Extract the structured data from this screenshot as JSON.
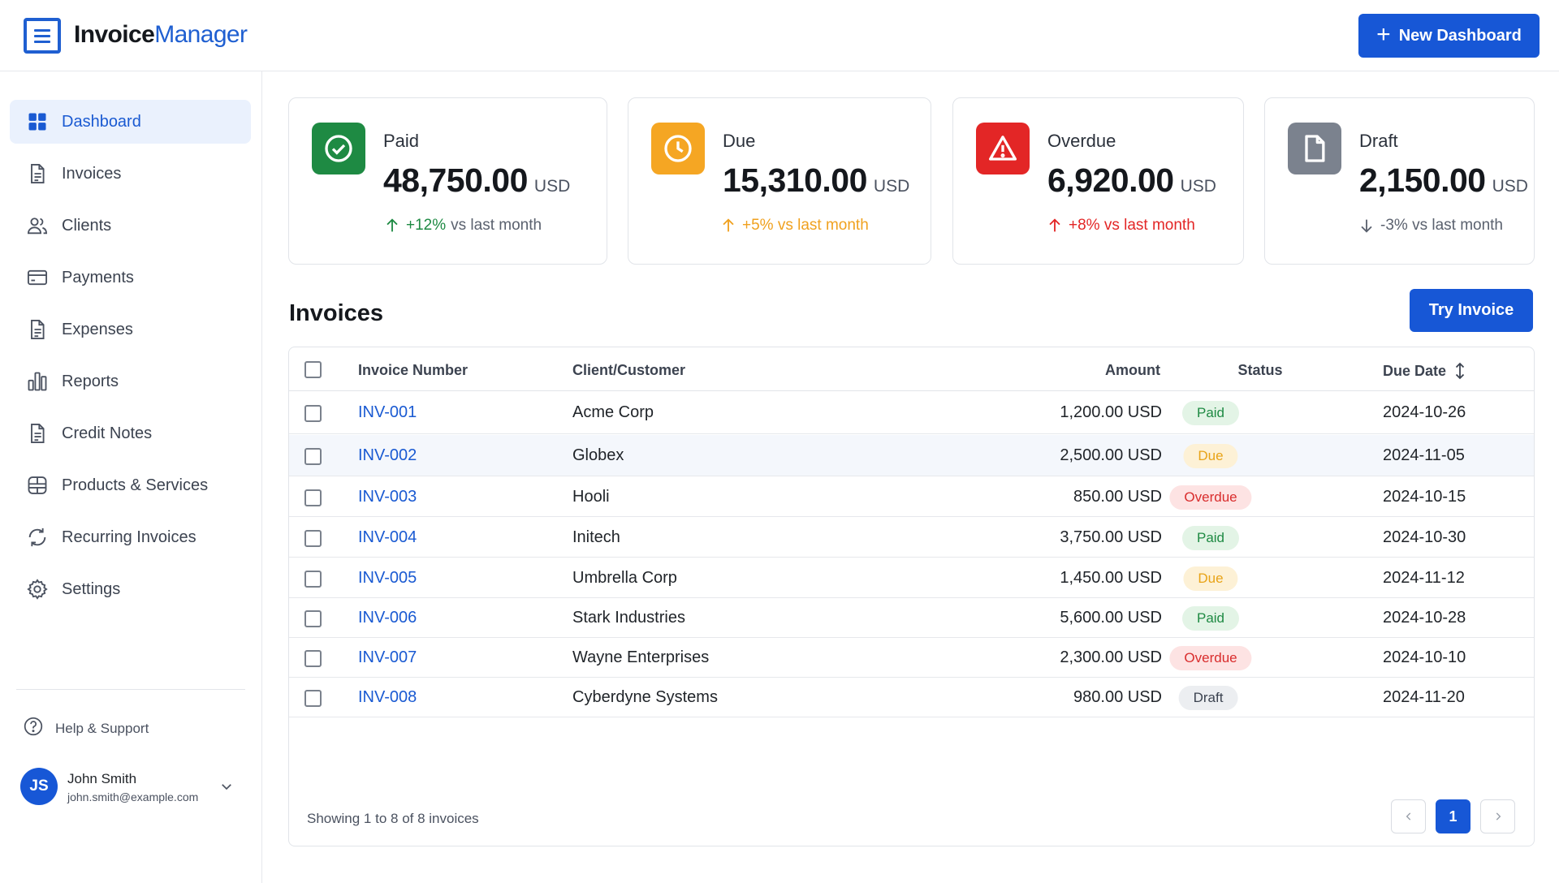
{
  "app": {
    "brand_part1": "Invoice",
    "brand_part2": "Manager"
  },
  "header": {
    "new_dashboard_label": "New Dashboard",
    "new_dashboard_icon": "plus-icon"
  },
  "sidebar": {
    "items": [
      {
        "label": "Dashboard",
        "icon": "dashboard-icon",
        "active": true
      },
      {
        "label": "Invoices",
        "icon": "invoice-icon"
      },
      {
        "label": "Clients",
        "icon": "clients-icon"
      },
      {
        "label": "Payments",
        "icon": "card-icon"
      },
      {
        "label": "Expenses",
        "icon": "document-icon"
      },
      {
        "label": "Reports",
        "icon": "bar-chart-icon"
      },
      {
        "label": "Credit Notes",
        "icon": "document-icon"
      },
      {
        "label": "Products & Services",
        "icon": "box-icon"
      },
      {
        "label": "Recurring Invoices",
        "icon": "refresh-icon"
      },
      {
        "label": "Settings",
        "icon": "gear-icon"
      }
    ],
    "help_label": "Help & Support",
    "user": {
      "initials": "JS",
      "name": "John Smith",
      "email": "john.smith@example.com"
    }
  },
  "stats": [
    {
      "label": "Paid",
      "value": "48,750.00",
      "unit": "USD",
      "trend_value": "+12%",
      "trend_suffix": "vs last month",
      "trend_dir": "up",
      "icon": "check-circle-icon",
      "color": "#1e8a43"
    },
    {
      "label": "Due",
      "value": "15,310.00",
      "unit": "USD",
      "trend_value": "+5% vs last month",
      "trend_suffix": "",
      "trend_dir": "up",
      "icon": "clock-icon",
      "color": "#f5a623"
    },
    {
      "label": "Overdue",
      "value": "6,920.00",
      "unit": "USD",
      "trend_value": "+8% vs last month",
      "trend_suffix": "",
      "trend_dir": "up",
      "icon": "warning-icon",
      "color": "#e32626"
    },
    {
      "label": "Draft",
      "value": "2,150.00",
      "unit": "USD",
      "trend_value": "-3% vs last month",
      "trend_suffix": "",
      "trend_dir": "down",
      "icon": "file-icon",
      "color": "#7b828e"
    }
  ],
  "invoices": {
    "title": "Invoices",
    "try_button_label": "Try Invoice",
    "columns": {
      "number": "Invoice Number",
      "client": "Client/Customer",
      "amount": "Amount",
      "status": "Status",
      "due": "Due Date"
    },
    "rows": [
      {
        "number": "INV-001",
        "client": "Acme Corp",
        "amount": "1,200.00 USD",
        "status": "Paid",
        "due": "2024-10-26"
      },
      {
        "number": "INV-002",
        "client": "Globex",
        "amount": "2,500.00 USD",
        "status": "Due",
        "due": "2024-11-05"
      },
      {
        "number": "INV-003",
        "client": "Hooli",
        "amount": "850.00 USD",
        "status": "Overdue",
        "due": "2024-10-15"
      },
      {
        "number": "INV-004",
        "client": "Initech",
        "amount": "3,750.00 USD",
        "status": "Paid",
        "due": "2024-10-30"
      },
      {
        "number": "INV-005",
        "client": "Umbrella Corp",
        "amount": "1,450.00 USD",
        "status": "Due",
        "due": "2024-11-12"
      },
      {
        "number": "INV-006",
        "client": "Stark Industries",
        "amount": "5,600.00 USD",
        "status": "Paid",
        "due": "2024-10-28"
      },
      {
        "number": "INV-007",
        "client": "Wayne Enterprises",
        "amount": "2,300.00 USD",
        "status": "Overdue",
        "due": "2024-10-10"
      },
      {
        "number": "INV-008",
        "client": "Cyberdyne Systems",
        "amount": "980.00 USD",
        "status": "Draft",
        "due": "2024-11-20"
      }
    ],
    "footer_text": "Showing 1 to 8 of 8 invoices",
    "current_page": "1",
    "status_colors": {
      "Paid": {
        "bg": "#e3f4e6",
        "fg": "#1e8a43"
      },
      "Due": {
        "bg": "#fdf1d6",
        "fg": "#e8a317"
      },
      "Overdue": {
        "bg": "#fde3e3",
        "fg": "#d92d2d"
      },
      "Draft": {
        "bg": "#eceef1",
        "fg": "#3c4350"
      }
    }
  }
}
